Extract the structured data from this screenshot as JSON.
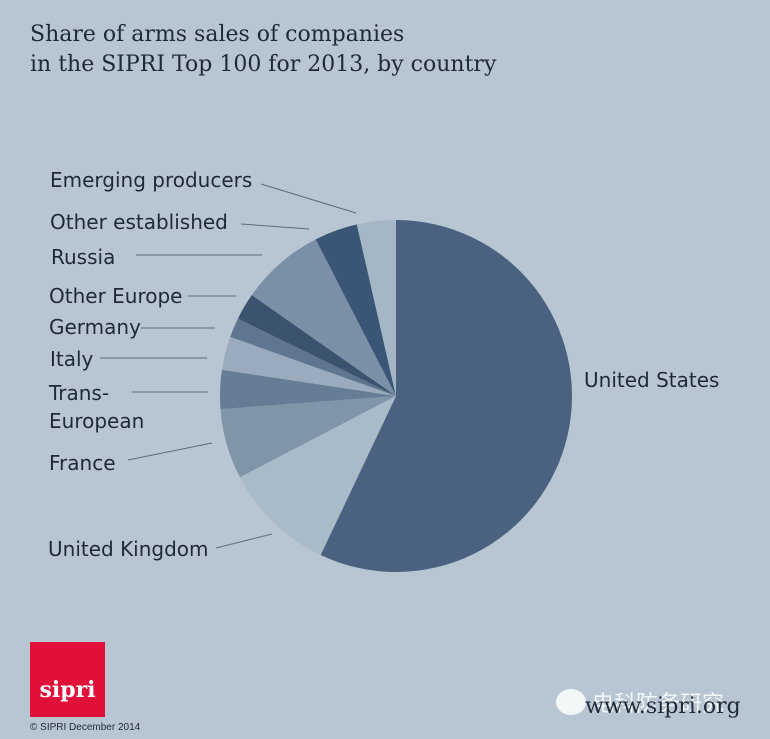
{
  "header": {
    "title_line1": "Share of arms sales of companies",
    "title_line2": "in the SIPRI Top 100 for 2013, by country"
  },
  "chart_data": {
    "type": "pie",
    "title": "Share of arms sales of companies in the SIPRI Top 100 for 2013, by country",
    "slices": [
      {
        "label": "United States",
        "value": 57.5,
        "color": "#4a6280"
      },
      {
        "label": "United Kingdom",
        "value": 10.4,
        "color": "#a9bac9"
      },
      {
        "label": "France",
        "value": 6.5,
        "color": "#8195a9"
      },
      {
        "label": "Trans-European",
        "value": 3.6,
        "color": "#677d96"
      },
      {
        "label": "Italy",
        "value": 3.1,
        "color": "#9aabbd"
      },
      {
        "label": "Germany",
        "value": 1.8,
        "color": "#5f7590"
      },
      {
        "label": "Other Europe",
        "value": 2.5,
        "color": "#3c5370"
      },
      {
        "label": "Russia",
        "value": 7.8,
        "color": "#7b90a6"
      },
      {
        "label": "Other established",
        "value": 4.0,
        "color": "#3a5676"
      },
      {
        "label": "Emerging producers",
        "value": 3.6,
        "color": "#a5b7c6"
      }
    ],
    "label_lines": [
      [
        "United States"
      ],
      [
        "United Kingdom"
      ],
      [
        "France"
      ],
      [
        "Trans-",
        "European"
      ],
      [
        "Italy"
      ],
      [
        "Germany"
      ],
      [
        "Other Europe"
      ],
      [
        "Russia"
      ],
      [
        "Other established"
      ],
      [
        "Emerging producers"
      ]
    ]
  },
  "footer": {
    "logo_text": "sipri",
    "copyright": "© SIPRI December 2014",
    "website": "www.sipri.org",
    "watermark": "电科防务研究"
  }
}
